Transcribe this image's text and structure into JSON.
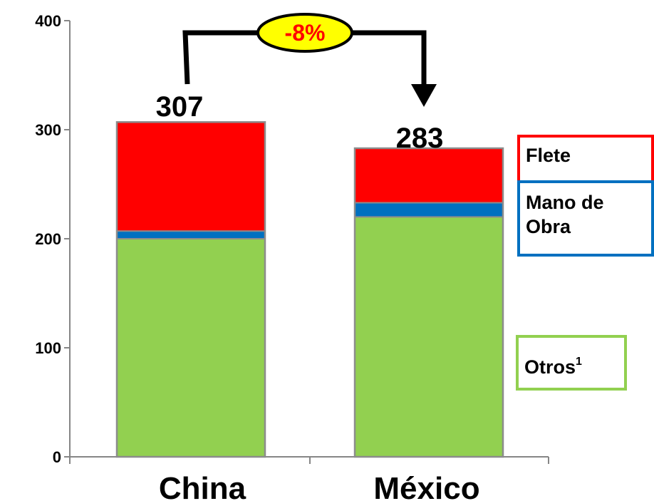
{
  "chart_data": {
    "type": "bar",
    "stacked": true,
    "categories": [
      "China",
      "México"
    ],
    "series": [
      {
        "name": "Otros",
        "color": "#92d050",
        "values": [
          200,
          220
        ]
      },
      {
        "name": "Mano de Obra",
        "color": "#0070c0",
        "values": [
          7,
          13
        ]
      },
      {
        "name": "Flete",
        "color": "#ff0000",
        "values": [
          100,
          50
        ]
      }
    ],
    "totals": [
      "307",
      "283"
    ],
    "ylim": [
      0,
      400
    ],
    "yticks": [
      "0",
      "100",
      "200",
      "300",
      "400"
    ],
    "annotation": {
      "label": "-8%",
      "from": "China",
      "to": "México",
      "badge_fill": "#ffff00",
      "badge_text_color": "#ff0000"
    },
    "legend": [
      {
        "text": "Flete",
        "border_color": "#ff0000"
      },
      {
        "text": "Mano de",
        "text2": "Obra",
        "border_color": "#0070c0"
      },
      {
        "text": "Otros",
        "superscript": "1",
        "border_color": "#92d050"
      }
    ],
    "bar_outline_color": "#8c8c8c"
  }
}
